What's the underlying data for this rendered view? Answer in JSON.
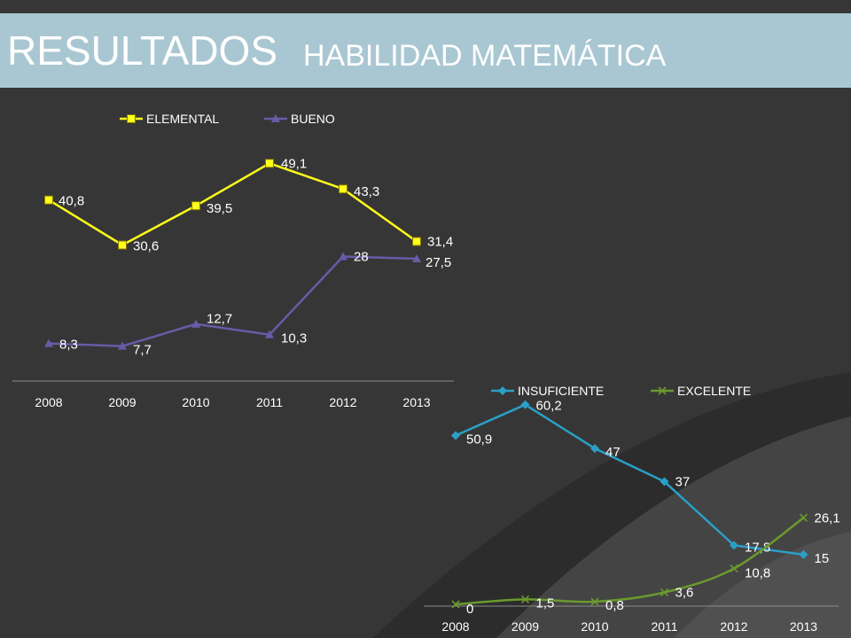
{
  "title": {
    "main": "RESULTADOS",
    "sub": "HABILIDAD MATEMÁTICA"
  },
  "colors": {
    "title_bar": "#a9c7d2",
    "background": "#363636",
    "elemental": "#ffff1a",
    "bueno": "#6a5aa8",
    "insuficiente": "#2aa0c8",
    "excelente": "#6b9a2e"
  },
  "chart_data": [
    {
      "type": "line",
      "categories": [
        "2008",
        "2009",
        "2010",
        "2011",
        "2012",
        "2013"
      ],
      "legend": "top",
      "grid": false,
      "ylim": [
        0,
        60
      ],
      "series": [
        {
          "name": "ELEMENTAL",
          "values": [
            40.8,
            30.6,
            39.5,
            49.1,
            43.3,
            31.4
          ],
          "labels": [
            "40,8",
            "30,6",
            "39,5",
            "49,1",
            "43,3",
            "31,4"
          ],
          "marker": "square",
          "color": "#ffff1a"
        },
        {
          "name": "BUENO",
          "values": [
            8.3,
            7.7,
            12.7,
            10.3,
            28,
            27.5
          ],
          "labels": [
            "8,3",
            "7,7",
            "12,7",
            "10,3",
            "28",
            "27,5"
          ],
          "marker": "triangle",
          "color": "#6a5aa8"
        }
      ]
    },
    {
      "type": "line",
      "categories": [
        "2008",
        "2009",
        "2010",
        "2011",
        "2012",
        "2013"
      ],
      "legend": "top",
      "grid": false,
      "ylim": [
        0,
        70
      ],
      "series": [
        {
          "name": "INSUFICIENTE",
          "values": [
            50.9,
            60.2,
            47,
            37,
            17.8,
            15
          ],
          "labels": [
            "50,9",
            "60,2",
            "47",
            "37",
            "17,8",
            "15"
          ],
          "marker": "diamond",
          "color": "#2aa0c8"
        },
        {
          "name": "EXCELENTE",
          "values": [
            0,
            1.5,
            0.8,
            3.6,
            10.8,
            26.1
          ],
          "labels": [
            "0",
            "1,5",
            "0,8",
            "3,6",
            "10,8",
            "26,1"
          ],
          "marker": "x",
          "color": "#6b9a2e"
        }
      ]
    }
  ]
}
